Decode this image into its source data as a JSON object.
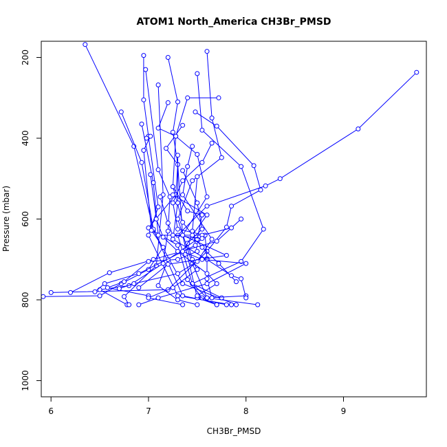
{
  "chart_data": {
    "type": "line",
    "title": "ATOM1 North_America CH3Br_PMSD",
    "xlabel": "CH3Br_PMSD",
    "ylabel": "Pressure (mbar)",
    "xlim": [
      5.9,
      9.85
    ],
    "ylim": [
      1040,
      160
    ],
    "y_reversed": true,
    "x_ticks": [
      6,
      7,
      8,
      9
    ],
    "y_ticks": [
      200,
      400,
      600,
      800,
      1000
    ],
    "grid": false,
    "series_color": "#0000ff",
    "marker": "open-circle",
    "series": [
      {
        "points": [
          [
            6.35,
            168
          ],
          [
            6.85,
            420
          ],
          [
            7.05,
            628
          ],
          [
            7.35,
            760
          ],
          [
            7.9,
            812
          ]
        ]
      },
      {
        "points": [
          [
            6.95,
            195
          ],
          [
            6.95,
            305
          ],
          [
            7.0,
            395
          ],
          [
            7.1,
            570
          ],
          [
            7.0,
            640
          ],
          [
            7.3,
            790
          ],
          [
            7.85,
            812
          ]
        ]
      },
      {
        "points": [
          [
            7.6,
            185
          ],
          [
            7.65,
            350
          ],
          [
            7.75,
            448
          ],
          [
            7.45,
            505
          ],
          [
            7.3,
            600
          ],
          [
            7.45,
            710
          ],
          [
            7.6,
            795
          ],
          [
            8.12,
            812
          ]
        ]
      },
      {
        "points": [
          [
            6.72,
            335
          ],
          [
            6.93,
            460
          ],
          [
            7.05,
            625
          ],
          [
            7.35,
            790
          ],
          [
            7.8,
            812
          ]
        ]
      },
      {
        "points": [
          [
            7.2,
            200
          ],
          [
            7.3,
            310
          ],
          [
            7.25,
            385
          ],
          [
            7.3,
            465
          ],
          [
            7.35,
            640
          ],
          [
            7.5,
            795
          ],
          [
            7.7,
            812
          ]
        ]
      },
      {
        "points": [
          [
            9.75,
            237
          ],
          [
            9.15,
            377
          ],
          [
            8.35,
            500
          ],
          [
            8.2,
            518
          ],
          [
            7.6,
            568
          ],
          [
            7.3,
            640
          ],
          [
            7.45,
            760
          ],
          [
            7.75,
            795
          ]
        ]
      },
      {
        "points": [
          [
            7.5,
            240
          ],
          [
            7.55,
            380
          ],
          [
            7.95,
            470
          ],
          [
            8.18,
            625
          ],
          [
            7.95,
            705
          ],
          [
            7.45,
            760
          ],
          [
            7.6,
            795
          ],
          [
            8.0,
            790
          ]
        ]
      },
      {
        "points": [
          [
            7.48,
            335
          ],
          [
            7.7,
            370
          ],
          [
            8.08,
            468
          ],
          [
            8.15,
            528
          ],
          [
            7.85,
            568
          ],
          [
            7.8,
            620
          ],
          [
            7.6,
            680
          ],
          [
            7.2,
            775
          ],
          [
            6.0,
            782
          ]
        ]
      },
      {
        "points": [
          [
            6.97,
            230
          ],
          [
            7.1,
            478
          ],
          [
            7.22,
            545
          ],
          [
            7.2,
            630
          ],
          [
            7.15,
            710
          ],
          [
            6.8,
            765
          ],
          [
            6.5,
            775
          ],
          [
            6.78,
            812
          ]
        ]
      },
      {
        "points": [
          [
            7.2,
            312
          ],
          [
            7.1,
            375
          ],
          [
            7.28,
            395
          ],
          [
            7.25,
            520
          ],
          [
            7.35,
            608
          ],
          [
            7.55,
            670
          ],
          [
            7.72,
            710
          ],
          [
            7.9,
            755
          ]
        ]
      },
      {
        "points": [
          [
            7.1,
            268
          ],
          [
            7.15,
            540
          ],
          [
            7.08,
            715
          ],
          [
            6.75,
            792
          ],
          [
            6.8,
            812
          ]
        ]
      },
      {
        "points": [
          [
            7.35,
            368
          ],
          [
            7.18,
            425
          ],
          [
            7.3,
            465
          ],
          [
            7.28,
            540
          ],
          [
            7.0,
            622
          ],
          [
            7.3,
            665
          ],
          [
            7.4,
            750
          ],
          [
            7.55,
            795
          ]
        ]
      },
      {
        "points": [
          [
            6.98,
            400
          ],
          [
            7.02,
            395
          ],
          [
            6.95,
            430
          ],
          [
            7.03,
            628
          ],
          [
            7.15,
            670
          ],
          [
            7.0,
            725
          ],
          [
            6.72,
            760
          ],
          [
            6.5,
            790
          ],
          [
            5.92,
            792
          ]
        ]
      },
      {
        "points": [
          [
            7.65,
            412
          ],
          [
            7.55,
            460
          ],
          [
            7.35,
            505
          ],
          [
            7.25,
            560
          ],
          [
            7.3,
            625
          ],
          [
            7.58,
            640
          ],
          [
            7.6,
            698
          ],
          [
            7.6,
            748
          ],
          [
            7.65,
            795
          ]
        ]
      },
      {
        "points": [
          [
            6.93,
            365
          ],
          [
            7.05,
            510
          ],
          [
            7.1,
            640
          ],
          [
            7.55,
            640
          ],
          [
            7.85,
            622
          ],
          [
            7.95,
            600
          ],
          [
            7.7,
            655
          ],
          [
            7.05,
            700
          ],
          [
            6.6,
            733
          ],
          [
            6.2,
            782
          ]
        ]
      },
      {
        "points": [
          [
            7.3,
            442
          ],
          [
            7.3,
            560
          ],
          [
            7.25,
            650
          ],
          [
            7.6,
            700
          ],
          [
            7.85,
            740
          ],
          [
            7.95,
            748
          ],
          [
            8.0,
            795
          ]
        ]
      },
      {
        "points": [
          [
            7.5,
            495
          ],
          [
            7.45,
            630
          ],
          [
            7.5,
            680
          ],
          [
            7.3,
            700
          ],
          [
            7.0,
            705
          ],
          [
            6.75,
            755
          ],
          [
            6.58,
            770
          ],
          [
            7.0,
            790
          ]
        ]
      },
      {
        "points": [
          [
            7.25,
            520
          ],
          [
            7.4,
            580
          ],
          [
            7.55,
            590
          ],
          [
            7.5,
            650
          ],
          [
            7.2,
            700
          ],
          [
            7.1,
            765
          ],
          [
            7.3,
            800
          ],
          [
            7.5,
            812
          ]
        ]
      },
      {
        "points": [
          [
            7.12,
            545
          ],
          [
            7.2,
            610
          ],
          [
            7.25,
            640
          ],
          [
            7.55,
            648
          ],
          [
            7.48,
            665
          ],
          [
            6.9,
            735
          ],
          [
            6.55,
            760
          ],
          [
            6.45,
            780
          ]
        ]
      },
      {
        "points": [
          [
            7.35,
            480
          ],
          [
            7.5,
            560
          ],
          [
            7.55,
            625
          ],
          [
            7.4,
            660
          ],
          [
            7.45,
            700
          ],
          [
            7.5,
            725
          ],
          [
            7.25,
            770
          ],
          [
            7.0,
            795
          ],
          [
            7.35,
            812
          ]
        ]
      },
      {
        "points": [
          [
            7.02,
            490
          ],
          [
            7.08,
            600
          ],
          [
            7.15,
            645
          ],
          [
            7.3,
            680
          ],
          [
            7.6,
            735
          ],
          [
            7.7,
            760
          ],
          [
            7.5,
            790
          ],
          [
            7.7,
            812
          ]
        ]
      },
      {
        "points": [
          [
            7.45,
            420
          ],
          [
            7.4,
            470
          ],
          [
            7.35,
            540
          ],
          [
            7.65,
            650
          ],
          [
            7.5,
            705
          ],
          [
            7.3,
            735
          ],
          [
            6.85,
            760
          ],
          [
            6.7,
            772
          ]
        ]
      },
      {
        "points": [
          [
            7.72,
            300
          ],
          [
            7.4,
            300
          ],
          [
            7.28,
            395
          ],
          [
            7.5,
            440
          ],
          [
            7.6,
            545
          ],
          [
            7.35,
            640
          ],
          [
            7.8,
            690
          ],
          [
            7.2,
            712
          ],
          [
            6.9,
            770
          ]
        ]
      },
      {
        "points": [
          [
            7.25,
            540
          ],
          [
            7.6,
            590
          ],
          [
            7.45,
            640
          ],
          [
            7.35,
            680
          ],
          [
            7.55,
            700
          ],
          [
            8.0,
            710
          ],
          [
            7.6,
            760
          ],
          [
            7.1,
            795
          ],
          [
            6.9,
            812
          ]
        ]
      }
    ]
  }
}
